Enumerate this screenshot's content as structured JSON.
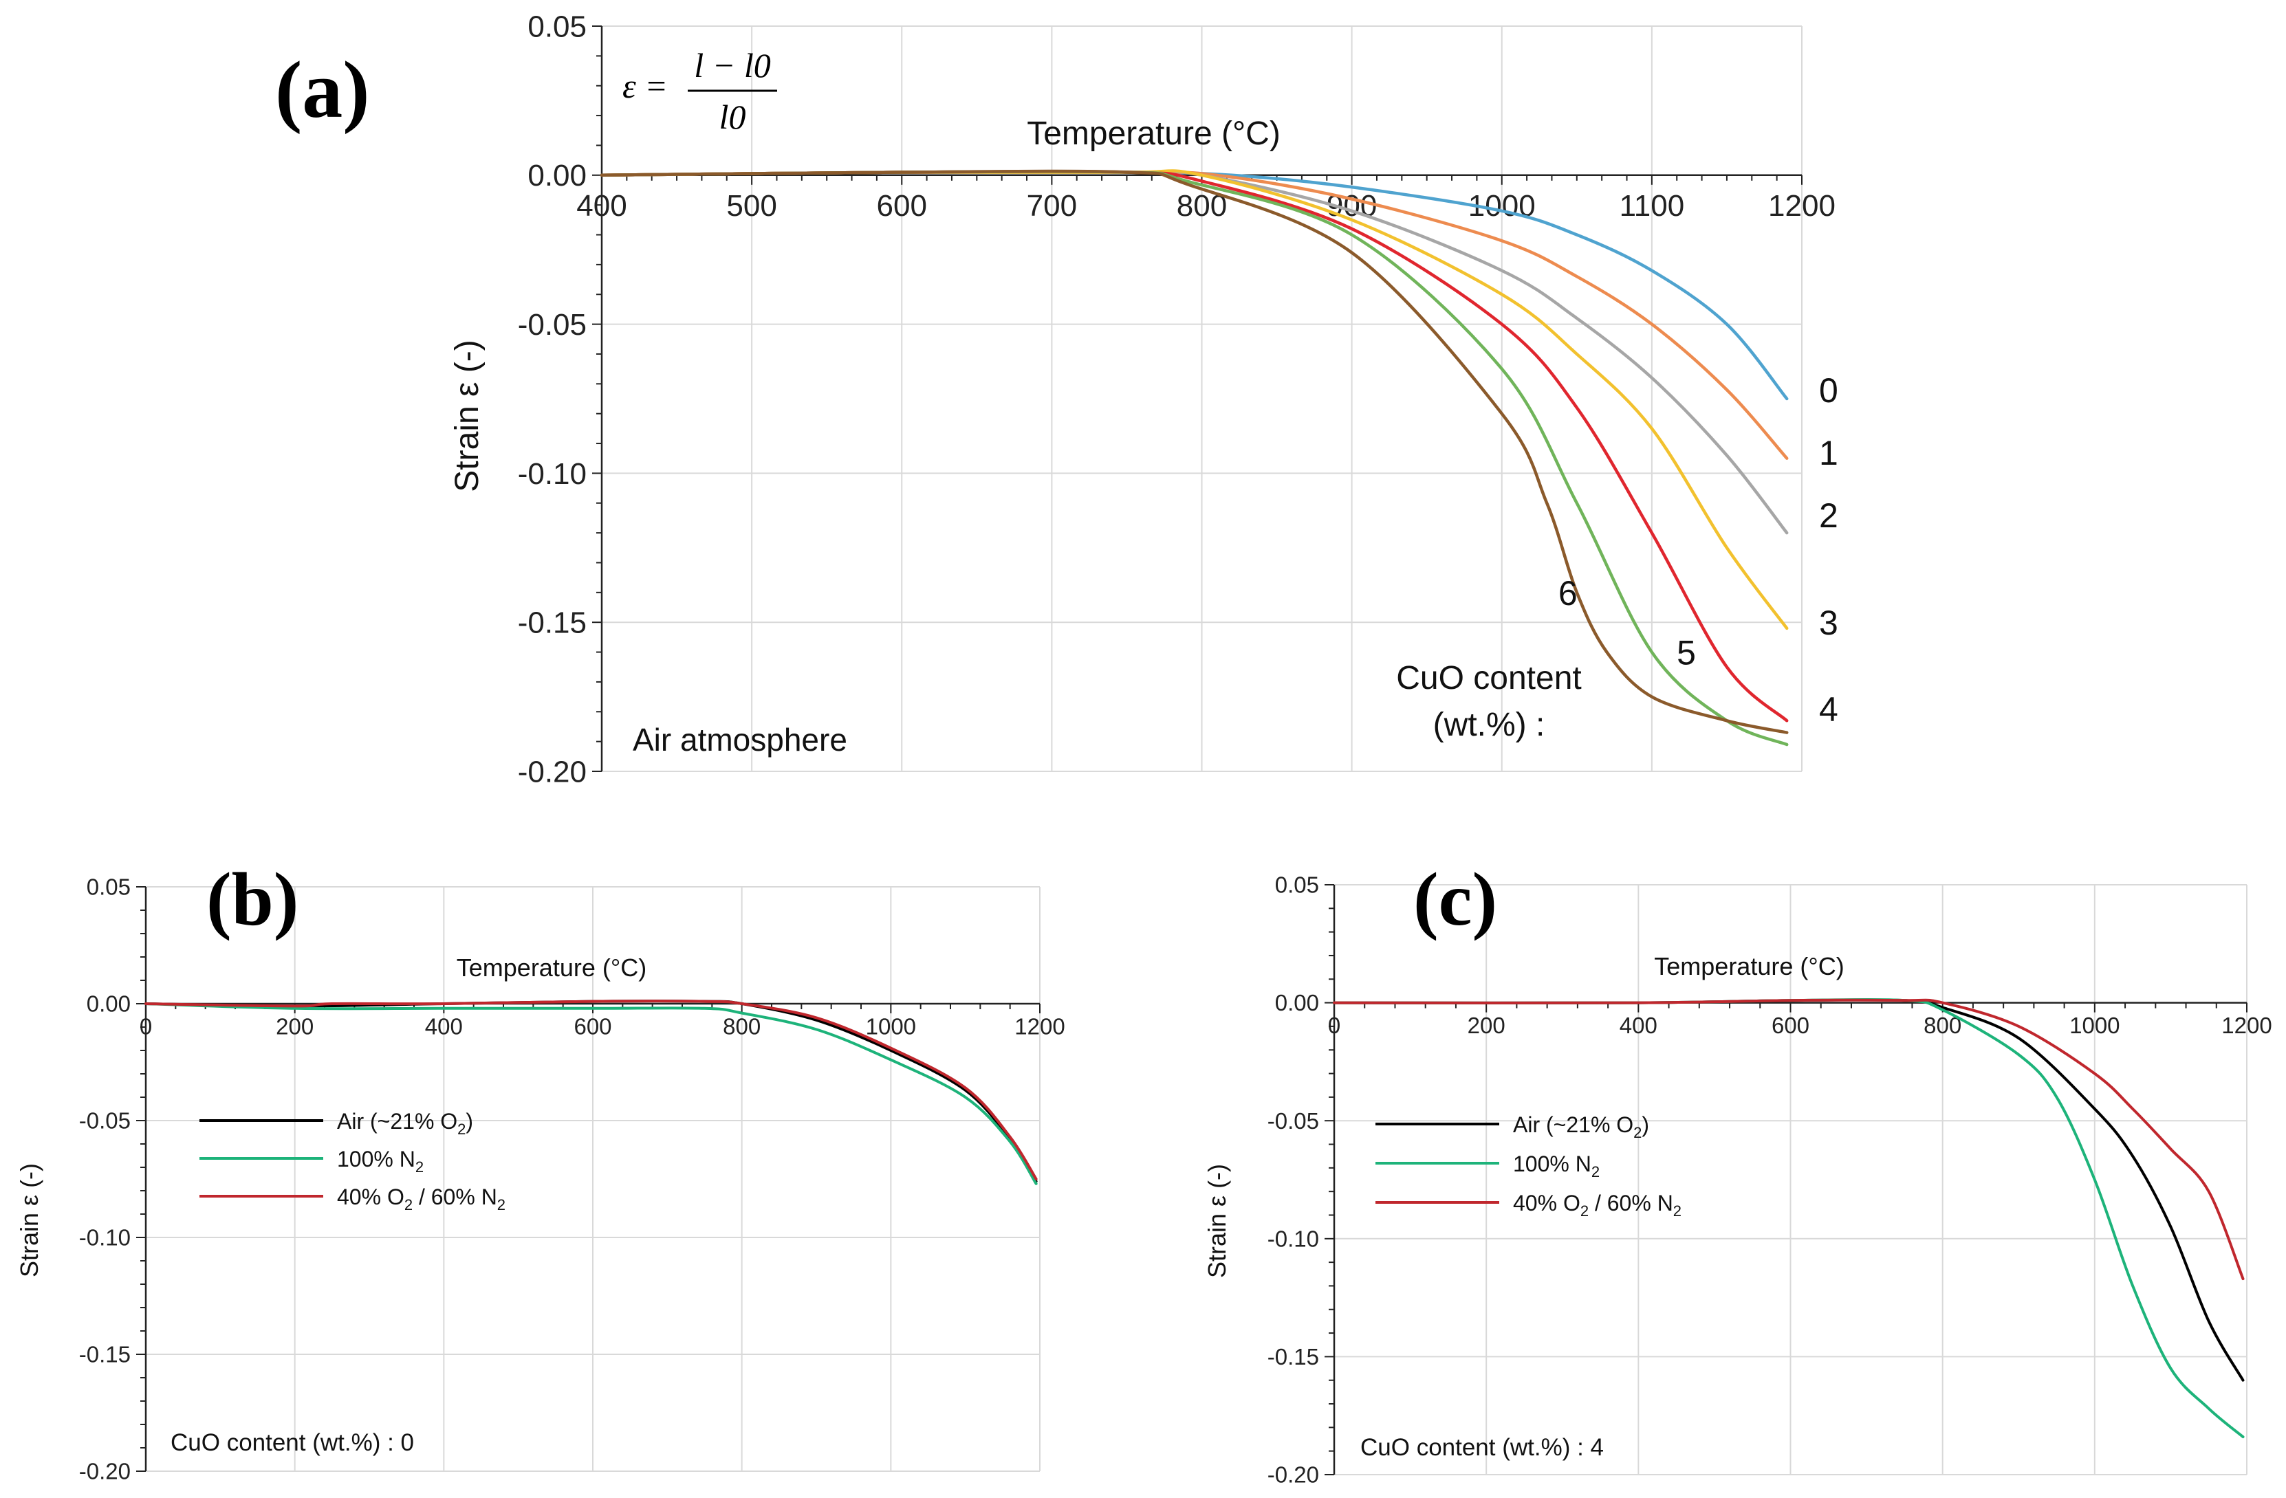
{
  "chart_data": [
    {
      "type": "line",
      "panel_label": "(a)",
      "title": "",
      "xlabel": "Temperature (°C)",
      "ylabel": "Strain ε (-)",
      "xlim": [
        400,
        1200
      ],
      "ylim": [
        -0.2,
        0.05
      ],
      "xticks": [
        400,
        500,
        600,
        700,
        800,
        900,
        1000,
        1100,
        1200
      ],
      "xtick_labels": [
        "400",
        "500",
        "600",
        "700",
        "800",
        "900",
        "1000",
        "1100",
        "1200"
      ],
      "yticks": [
        0.05,
        0.0,
        -0.05,
        -0.1,
        -0.15,
        -0.2
      ],
      "ytick_labels": [
        "0.05",
        "0.00",
        "-0.05",
        "-0.10",
        "-0.15",
        "-0.20"
      ],
      "grid": true,
      "formula": {
        "lhs": "ε =",
        "numerator": "l − l0",
        "denominator": "l0"
      },
      "annotations": {
        "atmosphere": "Air atmosphere",
        "cuo_line1": "CuO content",
        "cuo_line2": "(wt.%) :"
      },
      "series": [
        {
          "name": "0",
          "color": "#4fa3cf",
          "x": [
            400,
            600,
            750,
            820,
            900,
            1000,
            1050,
            1100,
            1150,
            1190
          ],
          "y": [
            0.0,
            0.001,
            0.001,
            0.0,
            -0.004,
            -0.012,
            -0.02,
            -0.032,
            -0.05,
            -0.075
          ]
        },
        {
          "name": "1",
          "color": "#ed8b4f",
          "x": [
            400,
            600,
            750,
            810,
            900,
            1000,
            1050,
            1100,
            1150,
            1190
          ],
          "y": [
            0.0,
            0.001,
            0.001,
            0.0,
            -0.008,
            -0.022,
            -0.034,
            -0.05,
            -0.072,
            -0.095
          ]
        },
        {
          "name": "2",
          "color": "#a6a6a6",
          "x": [
            400,
            600,
            750,
            800,
            900,
            1000,
            1050,
            1100,
            1150,
            1190
          ],
          "y": [
            0.0,
            0.001,
            0.001,
            0.0,
            -0.012,
            -0.032,
            -0.048,
            -0.068,
            -0.094,
            -0.12
          ]
        },
        {
          "name": "3",
          "color": "#f2c12e",
          "x": [
            400,
            600,
            750,
            800,
            900,
            1000,
            1050,
            1100,
            1150,
            1190
          ],
          "y": [
            0.0,
            0.001,
            0.001,
            0.0,
            -0.015,
            -0.04,
            -0.06,
            -0.085,
            -0.125,
            -0.152
          ]
        },
        {
          "name": "4",
          "color": "#e0262e",
          "x": [
            400,
            600,
            750,
            800,
            900,
            1000,
            1050,
            1100,
            1150,
            1190
          ],
          "y": [
            0.0,
            0.001,
            0.001,
            -0.002,
            -0.018,
            -0.05,
            -0.078,
            -0.12,
            -0.165,
            -0.183
          ]
        },
        {
          "name": "5",
          "color": "#70b45a",
          "x": [
            400,
            600,
            750,
            790,
            900,
            1000,
            1050,
            1100,
            1150,
            1190
          ],
          "y": [
            0.0,
            0.001,
            0.001,
            -0.002,
            -0.02,
            -0.065,
            -0.11,
            -0.16,
            -0.183,
            -0.191
          ]
        },
        {
          "name": "6",
          "color": "#8b5a2b",
          "x": [
            400,
            600,
            750,
            790,
            900,
            1000,
            1030,
            1050,
            1070,
            1100,
            1150,
            1190
          ],
          "y": [
            0.0,
            0.001,
            0.001,
            -0.003,
            -0.026,
            -0.08,
            -0.11,
            -0.14,
            -0.16,
            -0.175,
            -0.183,
            -0.187
          ]
        }
      ]
    },
    {
      "type": "line",
      "panel_label": "(b)",
      "title": "",
      "xlabel": "Temperature (°C)",
      "ylabel": "Strain ε (-)",
      "xlim": [
        0,
        1200
      ],
      "ylim": [
        -0.2,
        0.05
      ],
      "xticks": [
        0,
        200,
        400,
        600,
        800,
        1000,
        1200
      ],
      "xtick_labels": [
        "0",
        "200",
        "400",
        "600",
        "800",
        "1000",
        "1200"
      ],
      "yticks": [
        0.05,
        0.0,
        -0.05,
        -0.1,
        -0.15,
        -0.2
      ],
      "ytick_labels": [
        "0.05",
        "0.00",
        "-0.05",
        "-0.10",
        "-0.15",
        "-0.20"
      ],
      "grid": true,
      "annotation": "CuO content (wt.%) : 0",
      "legend": {
        "position": "left",
        "entries": [
          {
            "name": "Air (~21% O",
            "sub": "2",
            "tail": ")",
            "color": "#000000"
          },
          {
            "name": "100% N",
            "sub": "2",
            "tail": "",
            "color": "#1db37a"
          },
          {
            "name": "40% O",
            "sub": "2",
            "tail": " / 60% N",
            "sub2": "2",
            "color": "#c0272d"
          }
        ]
      },
      "series": [
        {
          "name": "Air (~21% O2)",
          "color": "#000000",
          "x": [
            0,
            200,
            400,
            600,
            750,
            800,
            900,
            1000,
            1100,
            1160,
            1195
          ],
          "y": [
            0.0,
            -0.001,
            0.0,
            0.001,
            0.001,
            0.0,
            -0.007,
            -0.02,
            -0.037,
            -0.058,
            -0.076
          ]
        },
        {
          "name": "100% N2",
          "color": "#1db37a",
          "x": [
            0,
            200,
            400,
            600,
            750,
            800,
            900,
            1000,
            1100,
            1160,
            1195
          ],
          "y": [
            0.0,
            -0.002,
            -0.002,
            -0.002,
            -0.002,
            -0.004,
            -0.011,
            -0.024,
            -0.04,
            -0.059,
            -0.077
          ]
        },
        {
          "name": "40% O2 / 60% N2",
          "color": "#c0272d",
          "x": [
            0,
            200,
            250,
            400,
            600,
            750,
            800,
            900,
            1000,
            1100,
            1160,
            1195
          ],
          "y": [
            0.0,
            -0.001,
            0.0,
            0.0,
            0.001,
            0.001,
            0.0,
            -0.006,
            -0.019,
            -0.036,
            -0.057,
            -0.075
          ]
        }
      ]
    },
    {
      "type": "line",
      "panel_label": "(c)",
      "title": "",
      "xlabel": "Temperature (°C)",
      "ylabel": "Strain ε (-)",
      "xlim": [
        0,
        1200
      ],
      "ylim": [
        -0.2,
        0.05
      ],
      "xticks": [
        0,
        200,
        400,
        600,
        800,
        1000,
        1200
      ],
      "xtick_labels": [
        "0",
        "200",
        "400",
        "600",
        "800",
        "1000",
        "1200"
      ],
      "yticks": [
        0.05,
        0.0,
        -0.05,
        -0.1,
        -0.15,
        -0.2
      ],
      "ytick_labels": [
        "0.05",
        "0.00",
        "-0.05",
        "-0.10",
        "-0.15",
        "-0.20"
      ],
      "grid": true,
      "annotation": "CuO content (wt.%) : 4",
      "legend": {
        "position": "left",
        "entries": [
          {
            "name": "Air (~21% O",
            "sub": "2",
            "tail": ")",
            "color": "#000000"
          },
          {
            "name": "100% N",
            "sub": "2",
            "tail": "",
            "color": "#1db37a"
          },
          {
            "name": "40% O",
            "sub": "2",
            "tail": " / 60% N",
            "sub2": "2",
            "color": "#c0272d"
          }
        ]
      },
      "series": [
        {
          "name": "Air (~21% O2)",
          "color": "#000000",
          "x": [
            0,
            400,
            600,
            750,
            800,
            900,
            1000,
            1050,
            1100,
            1150,
            1195
          ],
          "y": [
            0.0,
            0.0,
            0.001,
            0.001,
            -0.002,
            -0.015,
            -0.045,
            -0.065,
            -0.095,
            -0.135,
            -0.16
          ]
        },
        {
          "name": "100% N2",
          "color": "#1db37a",
          "x": [
            0,
            400,
            600,
            750,
            800,
            900,
            950,
            1000,
            1050,
            1100,
            1150,
            1195
          ],
          "y": [
            0.0,
            0.0,
            0.001,
            0.001,
            -0.003,
            -0.022,
            -0.04,
            -0.075,
            -0.12,
            -0.155,
            -0.172,
            -0.184
          ]
        },
        {
          "name": "40% O2 / 60% N2",
          "color": "#c0272d",
          "x": [
            0,
            400,
            600,
            750,
            800,
            900,
            1000,
            1050,
            1100,
            1150,
            1195
          ],
          "y": [
            0.0,
            0.0,
            0.001,
            0.001,
            0.0,
            -0.01,
            -0.03,
            -0.045,
            -0.062,
            -0.08,
            -0.117
          ]
        }
      ]
    }
  ]
}
